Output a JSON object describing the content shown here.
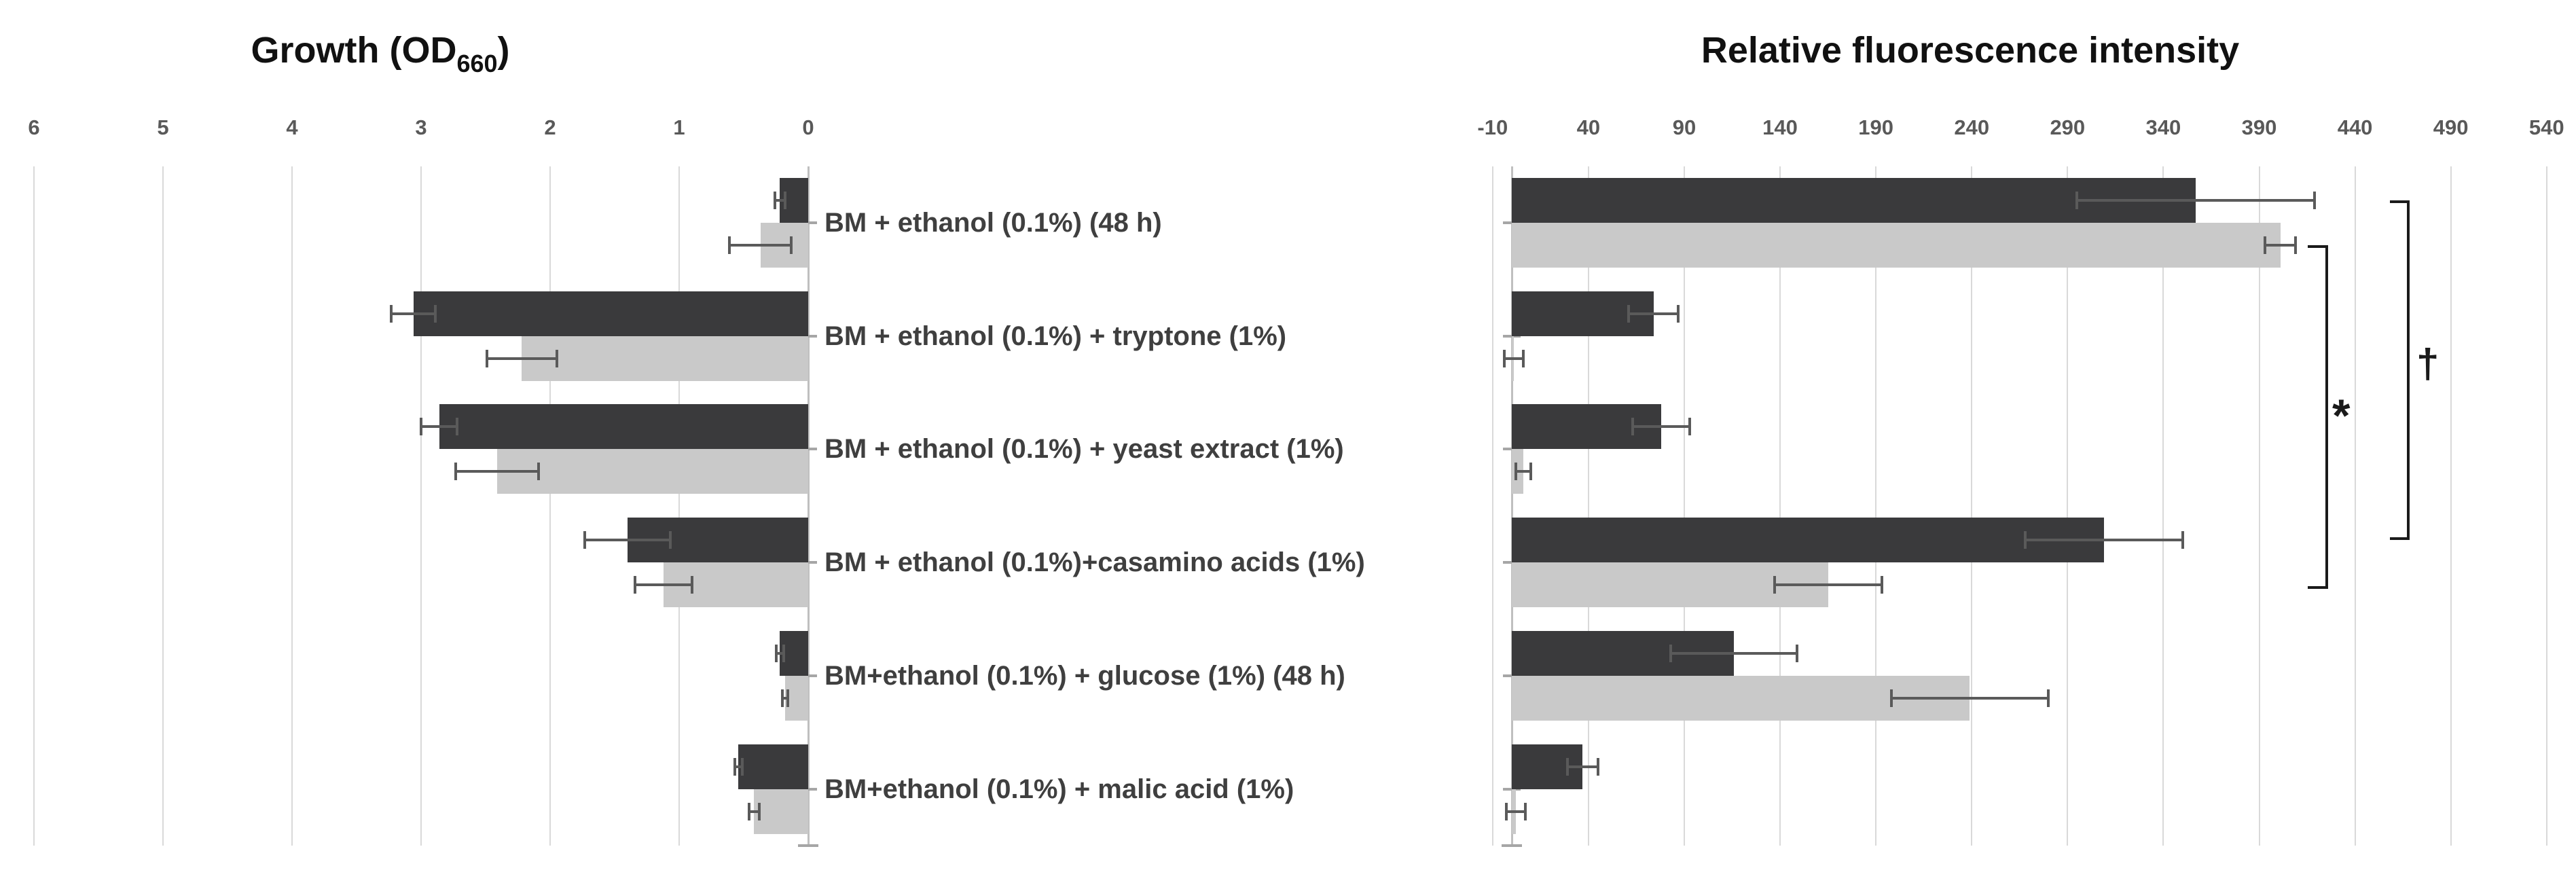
{
  "figure": {
    "left_title": {
      "main": "Growth (OD",
      "sub": "660",
      "end": ")"
    },
    "right_title": "Relative fluorescence intensity",
    "annotations": {
      "star": "*",
      "dagger": "†"
    }
  },
  "categories": [
    "BM + ethanol (0.1%) (48 h)",
    "BM + ethanol (0.1%) + tryptone (1%)",
    "BM + ethanol (0.1%) + yeast extract (1%)",
    "BM + ethanol (0.1%)+casamino acids (1%)",
    "BM+ethanol (0.1%) + glucose (1%) (48 h)",
    "BM+ethanol (0.1%) + malic acid (1%)"
  ],
  "chart_data": [
    {
      "type": "bar",
      "orientation": "horizontal",
      "title": "Growth (OD660)",
      "axis_position": "top",
      "value_axis_reversed": true,
      "xlim": [
        0,
        6
      ],
      "ticks": [
        6,
        5,
        4,
        3,
        2,
        1,
        0
      ],
      "grid": true,
      "legend": "none",
      "categories": [
        "BM + ethanol (0.1%) (48 h)",
        "BM + ethanol (0.1%) + tryptone (1%)",
        "BM + ethanol (0.1%) + yeast extract (1%)",
        "BM + ethanol (0.1%)+casamino acids (1%)",
        "BM+ethanol (0.1%) + glucose (1%) (48 h)",
        "BM+ethanol (0.1%) + malic acid (1%)"
      ],
      "series": [
        {
          "name": "dark",
          "color": "#3a3a3c",
          "values": [
            0.22,
            3.06,
            2.86,
            1.4,
            0.22,
            0.54
          ],
          "errors": [
            0.04,
            0.17,
            0.14,
            0.33,
            0.03,
            0.03
          ]
        },
        {
          "name": "light",
          "color": "#c9c9c9",
          "values": [
            0.37,
            2.22,
            2.41,
            1.12,
            0.18,
            0.42
          ],
          "errors": [
            0.24,
            0.27,
            0.32,
            0.22,
            0.02,
            0.04
          ]
        }
      ]
    },
    {
      "type": "bar",
      "orientation": "horizontal",
      "title": "Relative fluorescence intensity",
      "axis_position": "top",
      "value_axis_reversed": false,
      "xlim": [
        -10,
        540
      ],
      "ticks": [
        -10,
        40,
        90,
        140,
        190,
        240,
        290,
        340,
        390,
        440,
        490,
        540
      ],
      "grid": true,
      "legend": "none",
      "categories": [
        "BM + ethanol (0.1%) (48 h)",
        "BM + ethanol (0.1%) + tryptone (1%)",
        "BM + ethanol (0.1%) + yeast extract (1%)",
        "BM + ethanol (0.1%)+casamino acids (1%)",
        "BM+ethanol (0.1%) + glucose (1%) (48 h)",
        "BM+ethanol (0.1%) + malic acid (1%)"
      ],
      "series": [
        {
          "name": "dark",
          "color": "#3a3a3c",
          "values": [
            357,
            74,
            78,
            309,
            116,
            37
          ],
          "errors": [
            62,
            13,
            15,
            41,
            33,
            8
          ]
        },
        {
          "name": "light",
          "color": "#c9c9c9",
          "values": [
            401,
            1,
            6,
            165,
            239,
            2
          ],
          "errors": [
            8,
            5,
            4,
            28,
            41,
            5
          ]
        }
      ],
      "annotations": [
        {
          "symbol": "*",
          "from": {
            "category": 1,
            "series": "light"
          },
          "to": {
            "category": 4,
            "series": "light"
          }
        },
        {
          "symbol": "†",
          "from": {
            "category": 1,
            "series": "dark"
          },
          "to": {
            "category": 4,
            "series": "dark"
          }
        }
      ]
    }
  ]
}
